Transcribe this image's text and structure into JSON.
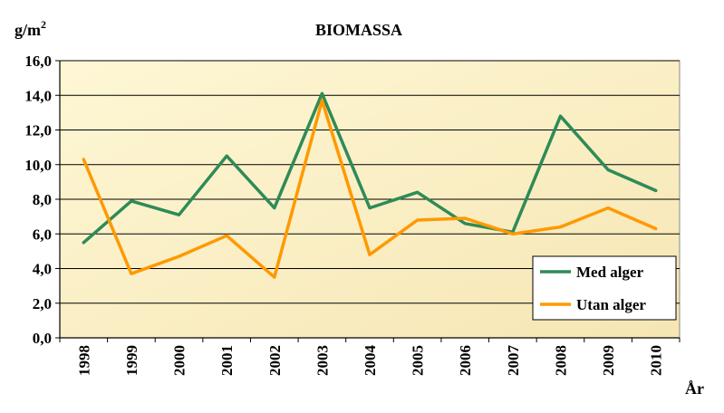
{
  "chart_data": {
    "type": "line",
    "title": "BIOMASSA",
    "ylabel": "g/m",
    "ylabel_superscript": "2",
    "xlabel": "År",
    "ylim": [
      0,
      16
    ],
    "yticks": [
      "0,0",
      "2,0",
      "4,0",
      "6,0",
      "8,0",
      "10,0",
      "12,0",
      "14,0",
      "16,0"
    ],
    "categories": [
      "1998",
      "1999",
      "2000",
      "2001",
      "2002",
      "2003",
      "2004",
      "2005",
      "2006",
      "2007",
      "2008",
      "2009",
      "2010"
    ],
    "grid": "horizontal",
    "legend_position": "bottom-right",
    "series": [
      {
        "name": "Med alger",
        "color": "#2e8b57",
        "values": [
          5.5,
          7.9,
          7.1,
          10.5,
          7.5,
          14.1,
          7.5,
          8.4,
          6.6,
          6.1,
          12.8,
          9.7,
          8.5
        ]
      },
      {
        "name": "Utan alger",
        "color": "#ff9900",
        "values": [
          10.3,
          3.7,
          4.7,
          5.9,
          3.5,
          13.7,
          4.8,
          6.8,
          6.9,
          6.0,
          6.4,
          7.5,
          6.3
        ]
      }
    ]
  },
  "colors": {
    "plot_background": "#fdf3c8",
    "plot_background_edge": "#f1dfa6",
    "gridline": "#000000"
  }
}
